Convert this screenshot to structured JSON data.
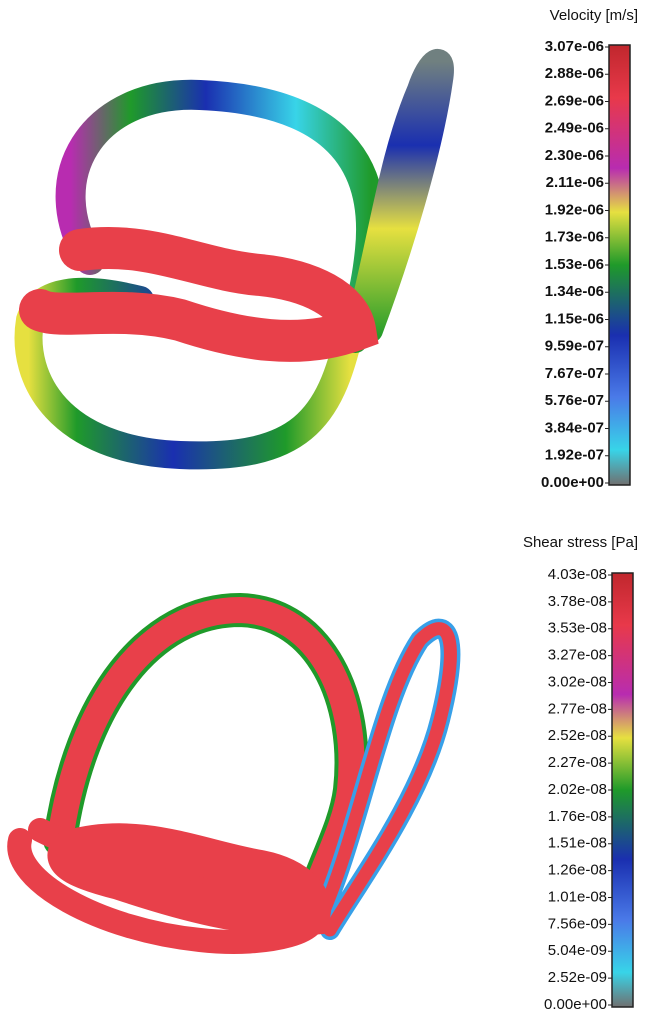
{
  "panels": [
    {
      "title": "Velocity [m/s]",
      "labels": [
        "3.07e-06",
        "2.88e-06",
        "2.69e-06",
        "2.49e-06",
        "2.30e-06",
        "2.11e-06",
        "1.92e-06",
        "1.73e-06",
        "1.53e-06",
        "1.34e-06",
        "1.15e-06",
        "9.59e-07",
        "7.67e-07",
        "5.76e-07",
        "3.84e-07",
        "1.92e-07",
        "0.00e+00"
      ]
    },
    {
      "title": "Shear stress [Pa]",
      "labels": [
        "4.03e-08",
        "3.78e-08",
        "3.53e-08",
        "3.27e-08",
        "3.02e-08",
        "2.77e-08",
        "2.52e-08",
        "2.27e-08",
        "2.02e-08",
        "1.76e-08",
        "1.51e-08",
        "1.26e-08",
        "1.01e-08",
        "7.56e-09",
        "5.04e-09",
        "2.52e-09",
        "0.00e+00"
      ]
    }
  ]
}
